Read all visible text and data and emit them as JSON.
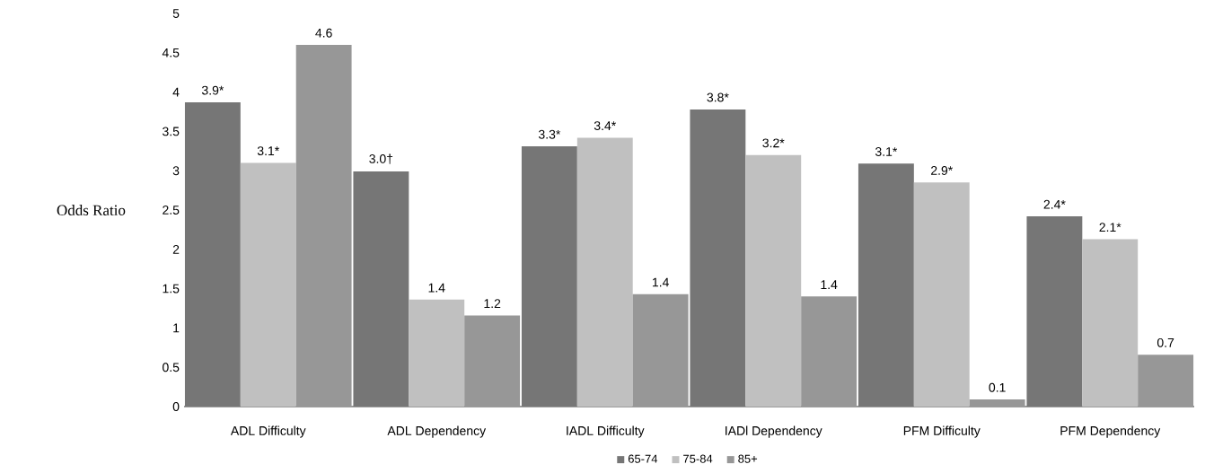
{
  "chart_data": {
    "type": "bar",
    "ylabel": "Odds Ratio",
    "categories": [
      "ADL Difficulty",
      "ADL Dependency",
      "IADL Difficulty",
      "IADl Dependency",
      "PFM Difficulty",
      "PFM Dependency"
    ],
    "series": [
      {
        "name": "65-74",
        "color": "#767676",
        "values": [
          3.87,
          2.99,
          3.31,
          3.78,
          3.09,
          2.42
        ],
        "value_labels": [
          "3.9*",
          "3.0†",
          "3.3*",
          "3.8*",
          "3.1*",
          "2.4*"
        ]
      },
      {
        "name": "75-84",
        "color": "#c0c0c0",
        "values": [
          3.1,
          1.36,
          3.42,
          3.2,
          2.85,
          2.13
        ],
        "value_labels": [
          "3.1*",
          "1.4",
          "3.4*",
          "3.2*",
          "2.9*",
          "2.1*"
        ]
      },
      {
        "name": "85+",
        "color": "#979797",
        "values": [
          4.6,
          1.16,
          1.43,
          1.4,
          0.09,
          0.66
        ],
        "value_labels": [
          "4.6",
          "1.2",
          "1.4",
          "1.4",
          "0.1",
          "0.7"
        ]
      }
    ],
    "ylim": [
      0,
      5
    ],
    "yticks": [
      0,
      0.5,
      1,
      1.5,
      2,
      2.5,
      3,
      3.5,
      4,
      4.5,
      5
    ],
    "legend": "bottom"
  }
}
